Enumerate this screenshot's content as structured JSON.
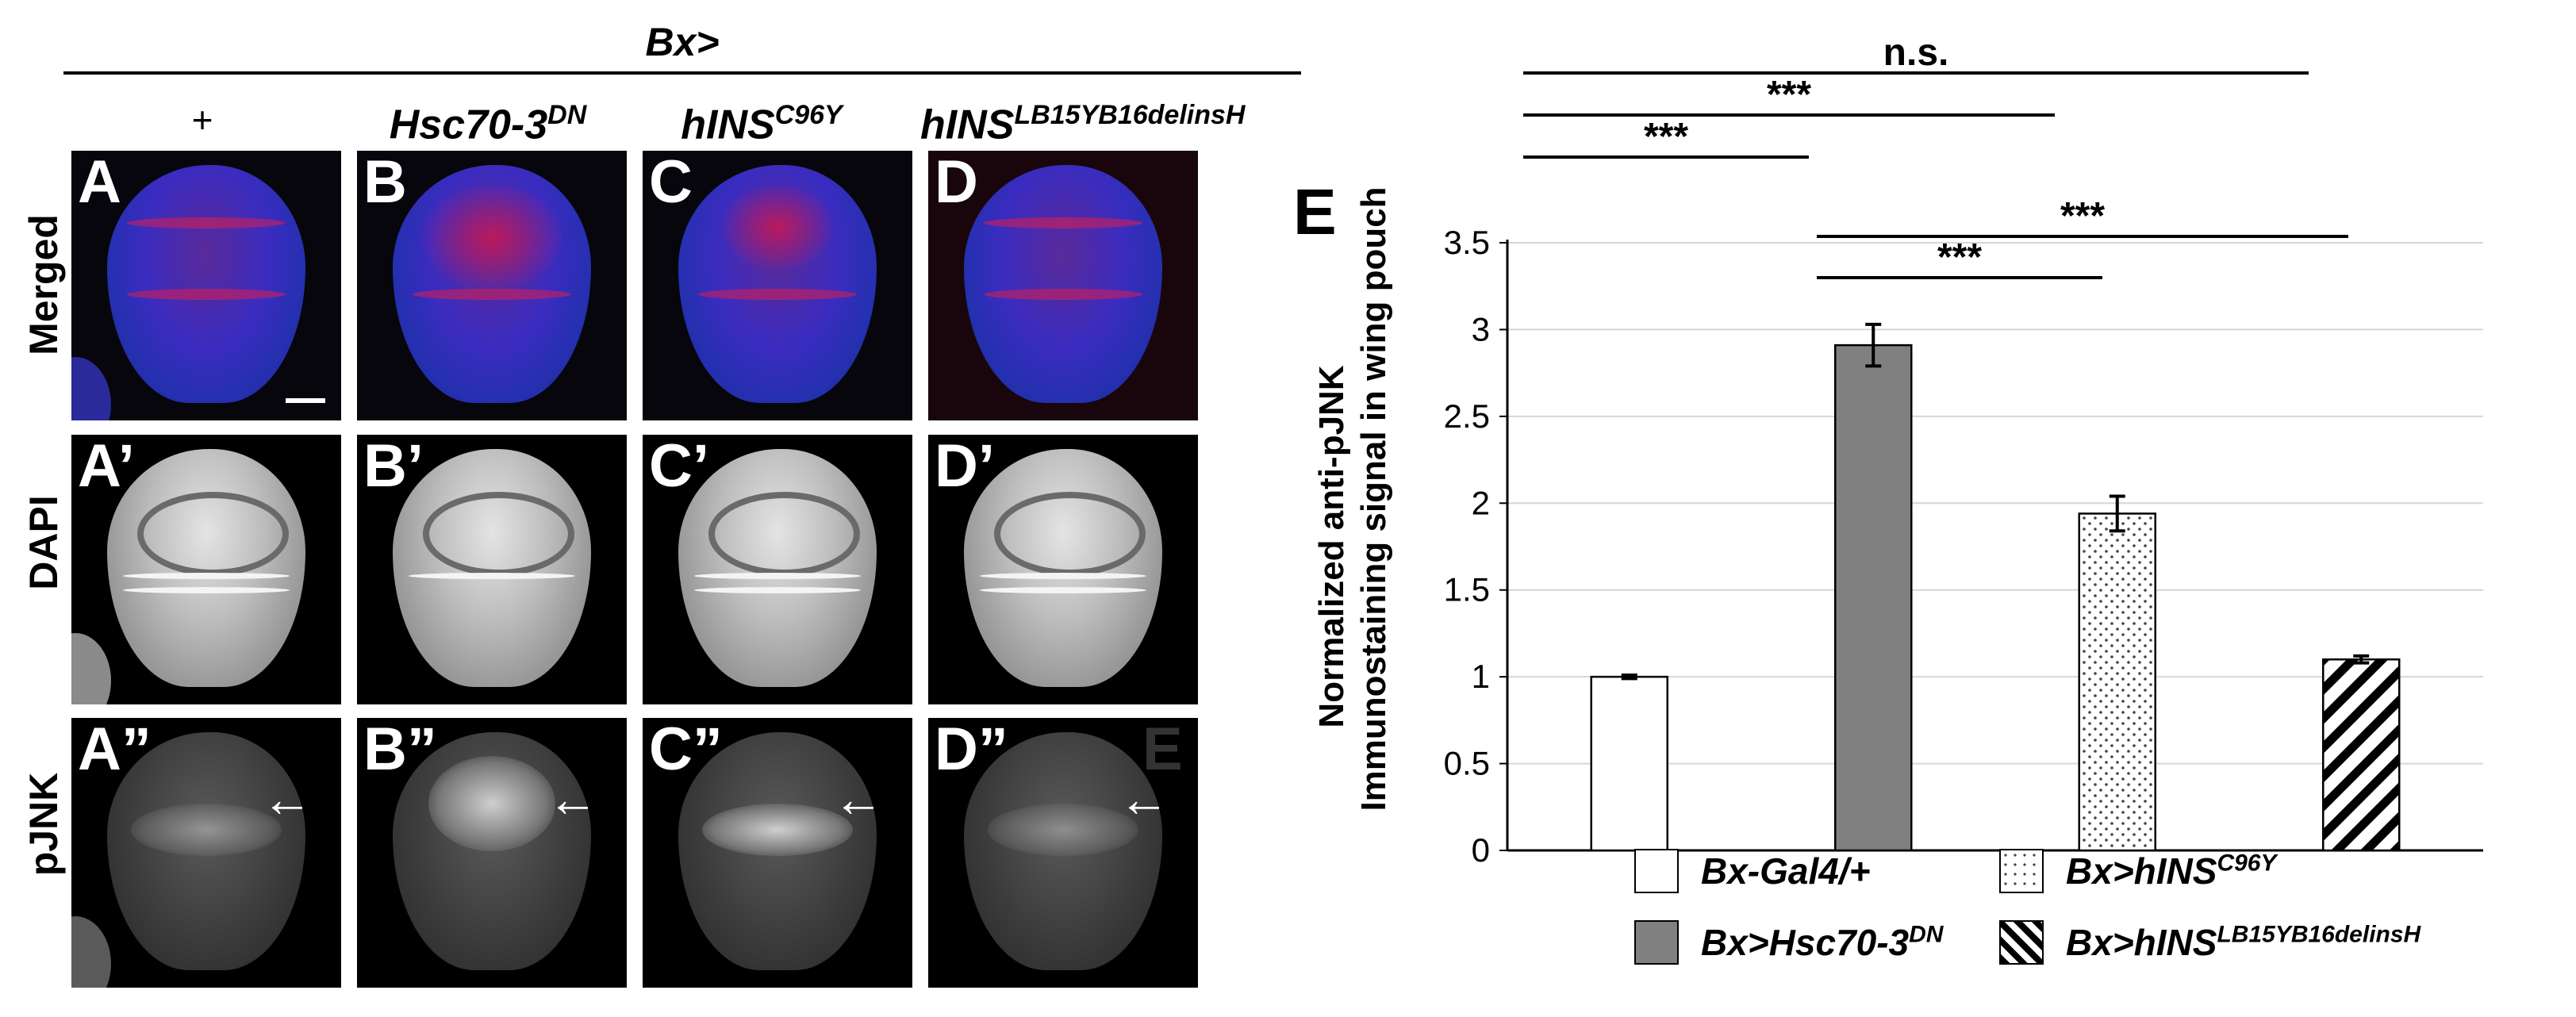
{
  "header": {
    "genotype_label": "Bx>"
  },
  "columns": [
    {
      "label": "+",
      "sup": ""
    },
    {
      "label": "Hsc70-3",
      "sup": "DN"
    },
    {
      "label": "hINS",
      "sup": "C96Y"
    },
    {
      "label": "hINS",
      "sup": "LB15YB16delinsH"
    }
  ],
  "rows": [
    {
      "label": "Merged"
    },
    {
      "label": "DAPI"
    },
    {
      "label": "pJNK"
    }
  ],
  "panels": [
    [
      "A",
      "B",
      "C",
      "D"
    ],
    [
      "A’",
      "B’",
      "C’",
      "D’"
    ],
    [
      "A”",
      "B”",
      "C”",
      "D”"
    ]
  ],
  "stray_letter": "E",
  "arrow_glyph": "←",
  "chart_data": {
    "type": "bar",
    "panel_letter": "E",
    "ylabel_line1": "Normalized anti-pJNK",
    "ylabel_line2": "Immunostaining signal in wing pouch",
    "ylim": [
      0,
      3.5
    ],
    "yticks": [
      "0",
      "0.5",
      "1",
      "1.5",
      "2",
      "2.5",
      "3",
      "3.5"
    ],
    "grid": true,
    "categories": [
      "Bx-Gal4/+",
      "Bx>Hsc70-3DN",
      "Bx>hINSC96Y",
      "Bx>hINSLB15YB16delinsH"
    ],
    "values": [
      1.0,
      2.91,
      1.94,
      1.1
    ],
    "errors": [
      0.01,
      0.12,
      0.1,
      0.02
    ],
    "fills": [
      "#ffffff",
      "#808080",
      "dots",
      "hatch"
    ],
    "significance": [
      {
        "from": 0,
        "to": 3,
        "label": "n.s."
      },
      {
        "from": 0,
        "to": 2,
        "label": "***"
      },
      {
        "from": 0,
        "to": 1,
        "label": "***"
      },
      {
        "from": 1,
        "to": 3,
        "label": "***"
      },
      {
        "from": 1,
        "to": 2,
        "label": "***"
      }
    ],
    "legend": [
      {
        "prefix": "Bx-Gal4/+",
        "sup": "",
        "fill": "white"
      },
      {
        "prefix": "Bx>hINS",
        "sup": "C96Y",
        "fill": "dots"
      },
      {
        "prefix": "Bx>Hsc70-3",
        "sup": "DN",
        "fill": "gray"
      },
      {
        "prefix": "Bx>hINS",
        "sup": "LB15YB16delinsH",
        "fill": "hatch"
      }
    ]
  }
}
